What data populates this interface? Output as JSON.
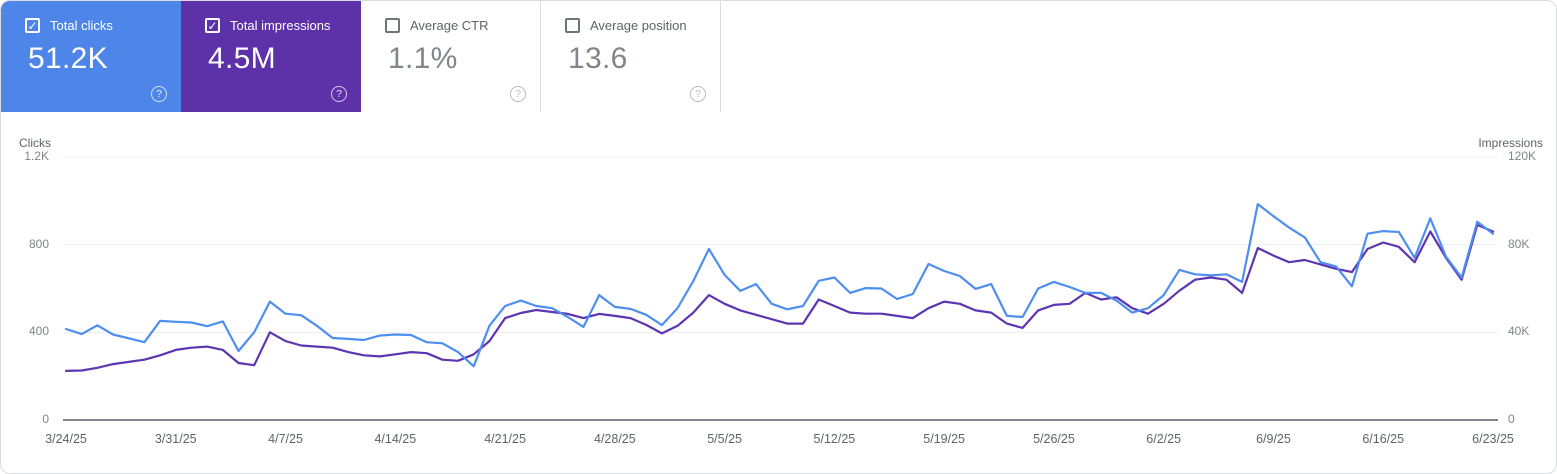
{
  "icons": {
    "help": "?",
    "check": "✓"
  },
  "colors": {
    "card_clicks_bg": "#4d86e8",
    "card_impressions_bg": "#5d31a8",
    "line_clicks": "#4e8ef0",
    "line_impressions": "#5e35b1",
    "gridline": "#eceef0",
    "axis_line": "#80868b"
  },
  "cards": [
    {
      "label": "Total clicks",
      "value": "51.2K",
      "checked": true,
      "style": "clicks"
    },
    {
      "label": "Total impressions",
      "value": "4.5M",
      "checked": true,
      "style": "impressions"
    },
    {
      "label": "Average CTR",
      "value": "1.1%",
      "checked": false,
      "style": "plain"
    },
    {
      "label": "Average position",
      "value": "13.6",
      "checked": false,
      "style": "plain"
    }
  ],
  "chart_data": {
    "type": "line",
    "grid": true,
    "legend_position": "none",
    "left_axis": {
      "label": "Clicks",
      "max": 1200,
      "ticks": [
        {
          "v": 1200,
          "t": "1.2K"
        },
        {
          "v": 800,
          "t": "800"
        },
        {
          "v": 400,
          "t": "400"
        },
        {
          "v": 0,
          "t": "0"
        }
      ]
    },
    "right_axis": {
      "label": "Impressions",
      "max": 120000,
      "ticks": [
        {
          "v": 120000,
          "t": "120K"
        },
        {
          "v": 80000,
          "t": "80K"
        },
        {
          "v": 40000,
          "t": "40K"
        },
        {
          "v": 0,
          "t": "0"
        }
      ]
    },
    "x_tick_labels": [
      "3/24/25",
      "3/31/25",
      "4/7/25",
      "4/14/25",
      "4/21/25",
      "4/28/25",
      "5/5/25",
      "5/12/25",
      "5/19/25",
      "5/26/25",
      "6/2/25",
      "6/9/25",
      "6/16/25",
      "6/23/25"
    ],
    "x_start": "3/24/25",
    "x_end": "6/23/25",
    "x_interval": "daily",
    "series": [
      {
        "name": "Total impressions",
        "axis": "right",
        "color_key": "line_impressions",
        "values": [
          22400,
          22600,
          23800,
          25500,
          26500,
          27500,
          29500,
          32000,
          33000,
          33500,
          32000,
          26000,
          25000,
          40000,
          36000,
          34000,
          33500,
          33000,
          31000,
          29500,
          29000,
          30000,
          31000,
          30500,
          27500,
          27000,
          30000,
          36000,
          46500,
          48800,
          50200,
          49300,
          48400,
          46500,
          48400,
          47500,
          46500,
          43400,
          39500,
          43000,
          49000,
          57000,
          53000,
          50000,
          48000,
          46000,
          44000,
          44000,
          55000,
          52000,
          49000,
          48500,
          48500,
          47500,
          46500,
          51000,
          54000,
          53000,
          50000,
          49000,
          44000,
          42000,
          50000,
          52500,
          53000,
          58000,
          55000,
          56000,
          51000,
          48500,
          53000,
          59000,
          64000,
          65000,
          64000,
          58000,
          78500,
          75000,
          72000,
          73000,
          71000,
          69000,
          67500,
          78000,
          81000,
          79000,
          72000,
          86000,
          74000,
          64000,
          89000,
          86000
        ]
      },
      {
        "name": "Total clicks",
        "axis": "left",
        "color_key": "line_clicks",
        "values": [
          415,
          392,
          432,
          390,
          373,
          355,
          452,
          448,
          445,
          428,
          450,
          315,
          400,
          540,
          485,
          478,
          430,
          374,
          370,
          365,
          385,
          390,
          388,
          355,
          350,
          310,
          245,
          430,
          520,
          545,
          520,
          510,
          470,
          425,
          570,
          516,
          507,
          480,
          433,
          511,
          634,
          780,
          662,
          589,
          620,
          530,
          505,
          520,
          635,
          650,
          580,
          602,
          600,
          552,
          575,
          712,
          680,
          657,
          598,
          620,
          475,
          470,
          600,
          630,
          607,
          580,
          580,
          545,
          490,
          510,
          570,
          685,
          665,
          660,
          665,
          630,
          985,
          930,
          878,
          833,
          720,
          700,
          610,
          850,
          862,
          858,
          740,
          920,
          745,
          650,
          905,
          850
        ]
      }
    ]
  }
}
